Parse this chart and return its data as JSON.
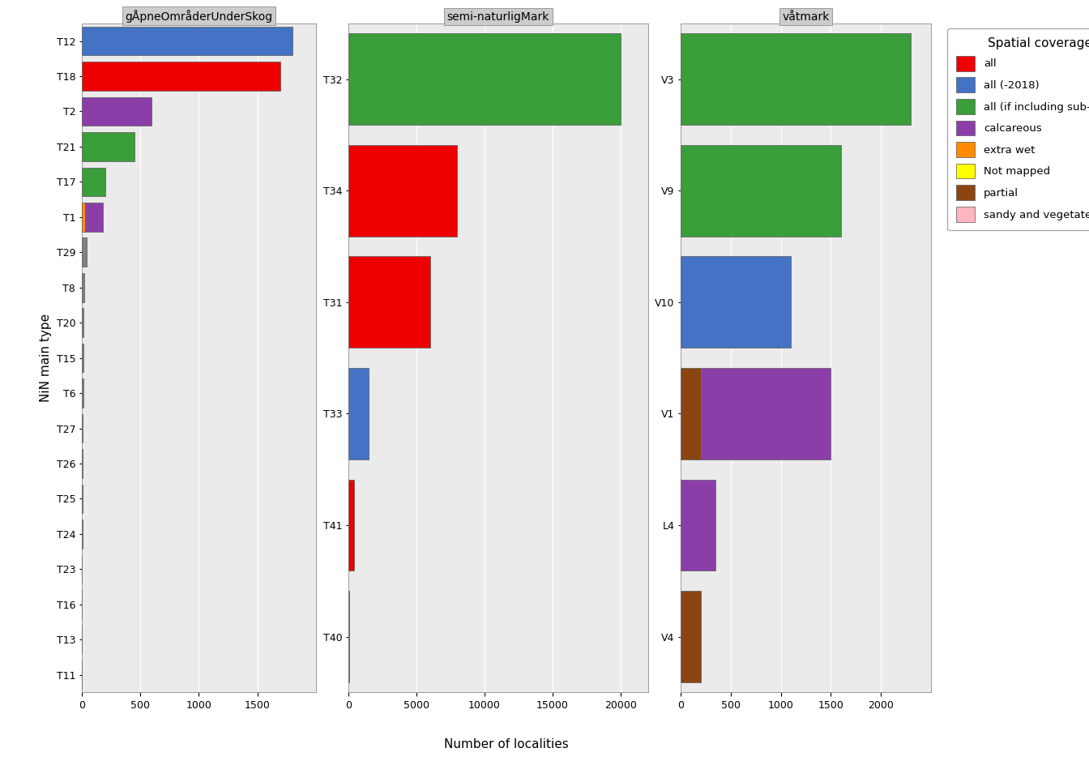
{
  "panel1_title": "gÅpneOmråderUnderSkog",
  "panel2_title": "semi-naturligMark",
  "panel3_title": "våtmark",
  "xlabel": "Number of localities",
  "ylabel": "NiN main type",
  "panel1": {
    "categories": [
      "T12",
      "T18",
      "T2",
      "T21",
      "T17",
      "T1",
      "T29",
      "T8",
      "T20",
      "T15",
      "T6",
      "T27",
      "T26",
      "T25",
      "T24",
      "T23",
      "T16",
      "T13",
      "T11"
    ],
    "bars": [
      {
        "value": 1800,
        "color": "#4472C4"
      },
      {
        "value": 1700,
        "color": "#EE0000"
      },
      {
        "value": 600,
        "color": "#8B3EA8"
      },
      {
        "value": 450,
        "color": "#3A9E3A"
      },
      {
        "value": 200,
        "color": "#3A9E3A"
      },
      {
        "value": 30,
        "color": "#FF8C00",
        "extra": {
          "value": 150,
          "color": "#8B3EA8"
        }
      },
      {
        "value": 40,
        "color": "#808080"
      },
      {
        "value": 22,
        "color": "#808080"
      },
      {
        "value": 18,
        "color": "#808080"
      },
      {
        "value": 15,
        "color": "#808080"
      },
      {
        "value": 12,
        "color": "#808080"
      },
      {
        "value": 10,
        "color": "#808080"
      },
      {
        "value": 8,
        "color": "#808080"
      },
      {
        "value": 6,
        "color": "#808080"
      },
      {
        "value": 5,
        "color": "#808080"
      },
      {
        "value": 4,
        "color": "#808080"
      },
      {
        "value": 3,
        "color": "#808080"
      },
      {
        "value": 2,
        "color": "#808080"
      },
      {
        "value": 1,
        "color": "#808080"
      }
    ],
    "xlim": [
      0,
      2000
    ],
    "xticks": [
      0,
      500,
      1000,
      1500
    ],
    "xticklabels": [
      "0",
      "500",
      "1000",
      "1500"
    ]
  },
  "panel2": {
    "categories": [
      "T32",
      "T34",
      "T31",
      "T33",
      "T41",
      "T40"
    ],
    "bars": [
      {
        "value": 20000,
        "color": "#3A9E3A"
      },
      {
        "value": 8000,
        "color": "#EE0000"
      },
      {
        "value": 6000,
        "color": "#EE0000"
      },
      {
        "value": 1500,
        "color": "#4472C4"
      },
      {
        "value": 400,
        "color": "#EE0000"
      },
      {
        "value": 50,
        "color": "#808080"
      }
    ],
    "xlim": [
      0,
      22000
    ],
    "xticks": [
      0,
      5000,
      10000,
      15000,
      20000
    ],
    "xticklabels": [
      "0",
      "5000",
      "10000",
      "15000",
      "20000"
    ]
  },
  "panel3": {
    "categories": [
      "V3",
      "V9",
      "V10",
      "V1",
      "L4",
      "V4"
    ],
    "bars": [
      {
        "value": 2300,
        "color": "#3A9E3A"
      },
      {
        "value": 1600,
        "color": "#3A9E3A"
      },
      {
        "value": 1100,
        "color": "#4472C4"
      },
      {
        "value": 200,
        "color": "#8B4513",
        "extra": {
          "value": 1300,
          "color": "#8B3EA8"
        }
      },
      {
        "value": 350,
        "color": "#8B3EA8"
      },
      {
        "value": 200,
        "color": "#8B4513"
      }
    ],
    "xlim": [
      0,
      2500
    ],
    "xticks": [
      0,
      500,
      1000,
      1500,
      2000
    ],
    "xticklabels": [
      "0",
      "500",
      "1000",
      "1500",
      "2000"
    ]
  },
  "legend": [
    {
      "label": "all",
      "color": "#EE0000"
    },
    {
      "label": "all (-2018)",
      "color": "#4472C4"
    },
    {
      "label": "all (if including sub-types)",
      "color": "#3A9E3A"
    },
    {
      "label": "calcareous",
      "color": "#8B3EA8"
    },
    {
      "label": "extra wet",
      "color": "#FF8C00"
    },
    {
      "label": "Not mapped",
      "color": "#FFFF00"
    },
    {
      "label": "partial",
      "color": "#8B4513"
    },
    {
      "label": "sandy and vegetated",
      "color": "#FFB6C1"
    }
  ],
  "bg_color": "#FFFFFF",
  "panel_bg": "#EBEBEB",
  "grid_color": "#FFFFFF",
  "title_fontsize": 10,
  "axis_fontsize": 11,
  "tick_fontsize": 9,
  "legend_title": "Spatial coverage",
  "bar_height": 0.82,
  "bar_edgecolor": "#666666",
  "bar_linewidth": 0.6
}
